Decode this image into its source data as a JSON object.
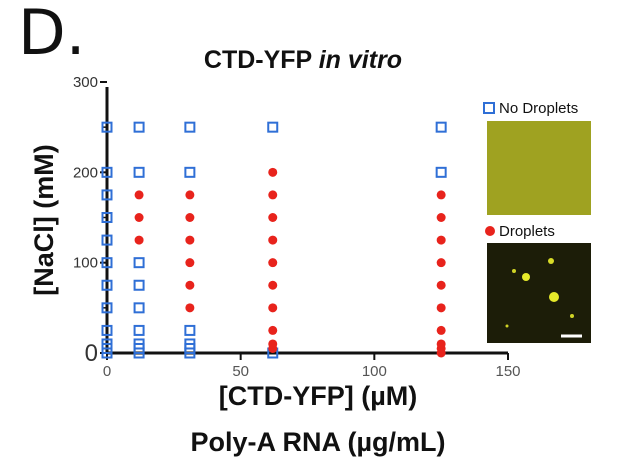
{
  "panel_label": "D.",
  "chart_data": {
    "type": "scatter",
    "title": {
      "main": "CTD-YFP ",
      "italic": "in vitro"
    },
    "xlabel": "[CTD-YFP] (µM)",
    "xlabel2": "Poly-A RNA (µg/mL)",
    "ylabel": "[NaCl] (mM)",
    "xlim": [
      0,
      150
    ],
    "ylim": [
      0,
      300
    ],
    "x_ticks": [
      0,
      50,
      100,
      150
    ],
    "y_ticks": [
      0,
      100,
      200,
      300
    ],
    "grid": false,
    "legend_placement": "right",
    "series": [
      {
        "name": "No Droplets",
        "marker": "open-square",
        "color": "#2f6fd6",
        "points": [
          [
            0,
            0
          ],
          [
            0,
            5
          ],
          [
            0,
            10
          ],
          [
            0,
            25
          ],
          [
            0,
            50
          ],
          [
            0,
            75
          ],
          [
            0,
            100
          ],
          [
            0,
            125
          ],
          [
            0,
            150
          ],
          [
            0,
            175
          ],
          [
            0,
            200
          ],
          [
            0,
            250
          ],
          [
            12,
            0
          ],
          [
            12,
            5
          ],
          [
            12,
            10
          ],
          [
            12,
            25
          ],
          [
            12,
            50
          ],
          [
            12,
            75
          ],
          [
            12,
            100
          ],
          [
            12,
            200
          ],
          [
            12,
            250
          ],
          [
            31,
            0
          ],
          [
            31,
            5
          ],
          [
            31,
            10
          ],
          [
            31,
            25
          ],
          [
            31,
            200
          ],
          [
            31,
            250
          ],
          [
            62,
            0
          ],
          [
            62,
            250
          ],
          [
            125,
            200
          ],
          [
            125,
            250
          ]
        ]
      },
      {
        "name": "Droplets",
        "marker": "filled-circle",
        "color": "#e8231c",
        "points": [
          [
            12,
            125
          ],
          [
            12,
            150
          ],
          [
            12,
            175
          ],
          [
            31,
            50
          ],
          [
            31,
            75
          ],
          [
            31,
            100
          ],
          [
            31,
            125
          ],
          [
            31,
            150
          ],
          [
            31,
            175
          ],
          [
            62,
            5
          ],
          [
            62,
            10
          ],
          [
            62,
            25
          ],
          [
            62,
            50
          ],
          [
            62,
            75
          ],
          [
            62,
            100
          ],
          [
            62,
            125
          ],
          [
            62,
            150
          ],
          [
            62,
            175
          ],
          [
            62,
            200
          ],
          [
            125,
            0
          ],
          [
            125,
            5
          ],
          [
            125,
            10
          ],
          [
            125,
            25
          ],
          [
            125,
            50
          ],
          [
            125,
            75
          ],
          [
            125,
            100
          ],
          [
            125,
            125
          ],
          [
            125,
            150
          ],
          [
            125,
            175
          ]
        ]
      }
    ]
  },
  "colors": {
    "no_droplet": "#2f6fd6",
    "droplet": "#e8231c",
    "image_bg_no": "#9a9c1e",
    "image_bg_yes": "#1c1d08",
    "image_spot": "#e6ea2a"
  }
}
